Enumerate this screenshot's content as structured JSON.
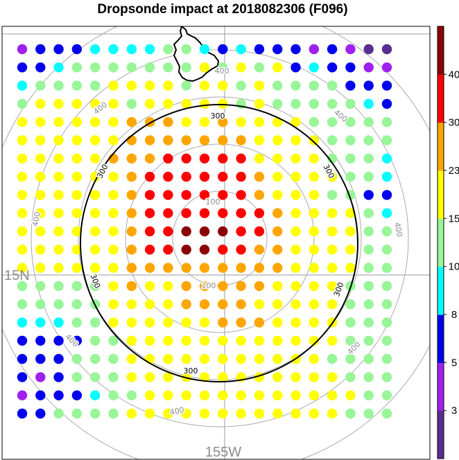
{
  "chart_data": {
    "type": "scatter",
    "title": "Dropsonde impact at 2018082306 (F096)",
    "axis_labels": {
      "lat": "15N",
      "lon": "155W"
    },
    "contour_levels": [
      100,
      300,
      400
    ],
    "colorbar": {
      "tick_labels": [
        "3",
        "5",
        "8",
        "10",
        "15",
        "23",
        "30",
        "40"
      ],
      "colors": [
        "#5a2d90",
        "#a020f0",
        "#0000ee",
        "#00ffff",
        "#98f598",
        "#ffff00",
        "#ffa500",
        "#ff0000",
        "#8b0000"
      ]
    },
    "grid": {
      "ncols": 21,
      "nrows": 21,
      "symbols": {
        "I": "#5a2d90",
        "P": "#a020f0",
        "B": "#0000ee",
        "C": "#00ffff",
        "G": "#98f598",
        "Y": "#ffff00",
        "O": "#ffa500",
        "R": "#ff0000",
        "D": "#8b0000"
      },
      "rows": [
        "PBBBCCCCGGCBCBBBPBPII",
        "BBCGGGGGGGYGYGYBCBBPP",
        "CGGGGYYYYGYYGYGGGGBBB",
        "GYYYYYGYYYYYGYGGGGGCB",
        "YYYYYYOOOYYOYYYYGGGGG",
        "YYYYYYOOOOOOOYYYYGGGG",
        "YYYYYOOORRRRRYYYYGGGC",
        "YYYYYYORRRRRROYYYYGGC",
        "YYYYYYORRRRRROYYYGGBB",
        "YYYYYYORRRRRRROYYYYGC",
        "YYYYYYORRDDDRROYYYYGG",
        "YYYYYYORRDDRROOYYYYGG",
        "YYYYYYOOOOOOOOOYYYYGG",
        "GGGGGYOYYOOOOOYYYYGGG",
        "GGGGGYYYYOOOOYYYYYGGG",
        "CCCGGYYYYYYOOOYYYYGGG",
        "BBBBGGYYYYYYYYYYYYGGG",
        "BBBGGGYYYYYYYYYYYGGGG",
        "BPBGGGYYYYYYYYYYYYGGG",
        "PBBBCGGYYYYYYYYYYYYGG",
        "BBGGGGYYYYYYYYYYYYGGG"
      ]
    }
  }
}
